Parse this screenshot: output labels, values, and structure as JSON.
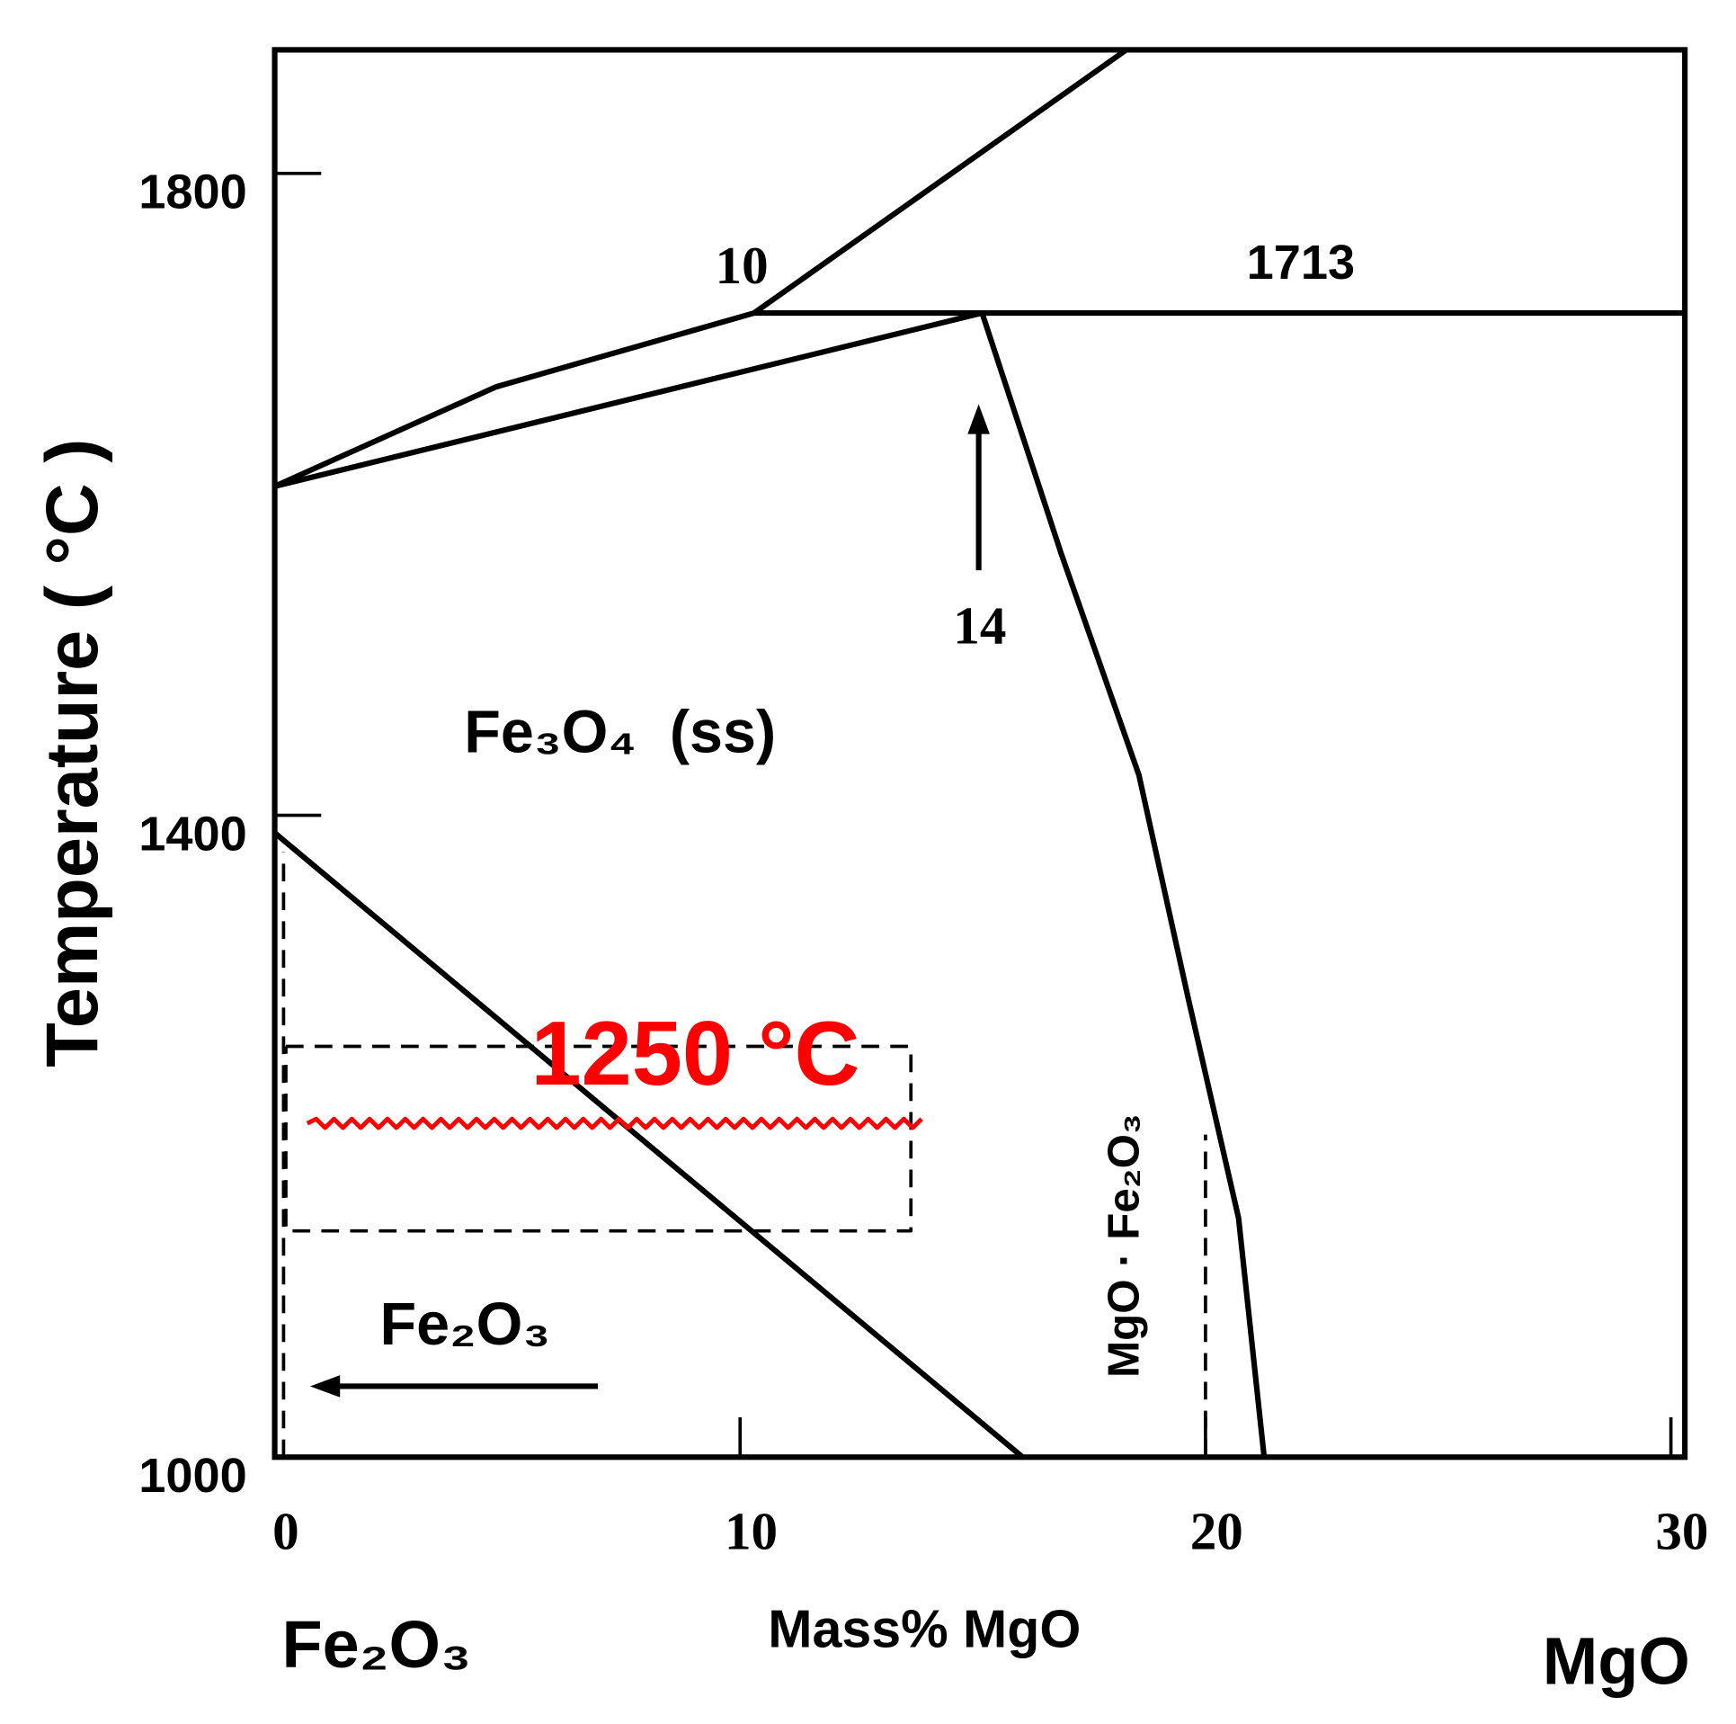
{
  "chart_data": {
    "type": "phase_diagram",
    "x_label": "Mass% MgO",
    "y_label": "Temperature ( °C )",
    "left_component": "Fe₂O₃",
    "right_component": "MgO",
    "xlim": [
      0,
      30.3
    ],
    "ylim": [
      1000,
      1877
    ],
    "xticks": [
      0,
      10,
      20,
      30
    ],
    "yticks": [
      1000,
      1400,
      1800
    ],
    "annotations": [
      "10",
      "1713",
      "14",
      "Fe₃O₄  (ss)",
      "1250 °C",
      "Fe₂O₃",
      "MgO · Fe₂O₃"
    ],
    "series": [
      {
        "color": "#000000",
        "dash": false,
        "x": [
          0,
          4.76,
          10.3
        ],
        "values": [
          1605,
          1667,
          1713
        ]
      },
      {
        "color": "#000000",
        "dash": false,
        "x": [
          10.3,
          18.3
        ],
        "values": [
          1713,
          1877
        ]
      },
      {
        "color": "#000000",
        "dash": false,
        "x": [
          10.3,
          30.3
        ],
        "values": [
          1713,
          1713
        ]
      },
      {
        "color": "#000000",
        "dash": false,
        "x": [
          0,
          15.2
        ],
        "values": [
          1605,
          1713
        ]
      },
      {
        "color": "#000000",
        "dash": false,
        "x": [
          15.2,
          16.9,
          18.57,
          19.62,
          20.71,
          21.26
        ],
        "values": [
          1713,
          1563,
          1425,
          1287,
          1149,
          1000
        ]
      },
      {
        "color": "#000000",
        "dash": false,
        "x": [
          0,
          16.07
        ],
        "values": [
          1389,
          1000
        ]
      },
      {
        "color": "#000000",
        "dash": true,
        "x": [
          20,
          20
        ],
        "values": [
          1000,
          1201
        ]
      },
      {
        "color": "#000000",
        "dash": true,
        "x": [
          0.19,
          0.19
        ],
        "values": [
          1000,
          1377
        ]
      },
      {
        "color": "#000000",
        "dash": true,
        "x": [
          0.24,
          13.67,
          13.67,
          0.24,
          0.24
        ],
        "values": [
          1256,
          1256,
          1141,
          1141,
          1256
        ]
      },
      {
        "color": "#ff0000",
        "dash": false,
        "wavy": true,
        "x": [
          0.7,
          13.9
        ],
        "values": [
          1208,
          1208
        ]
      }
    ]
  }
}
